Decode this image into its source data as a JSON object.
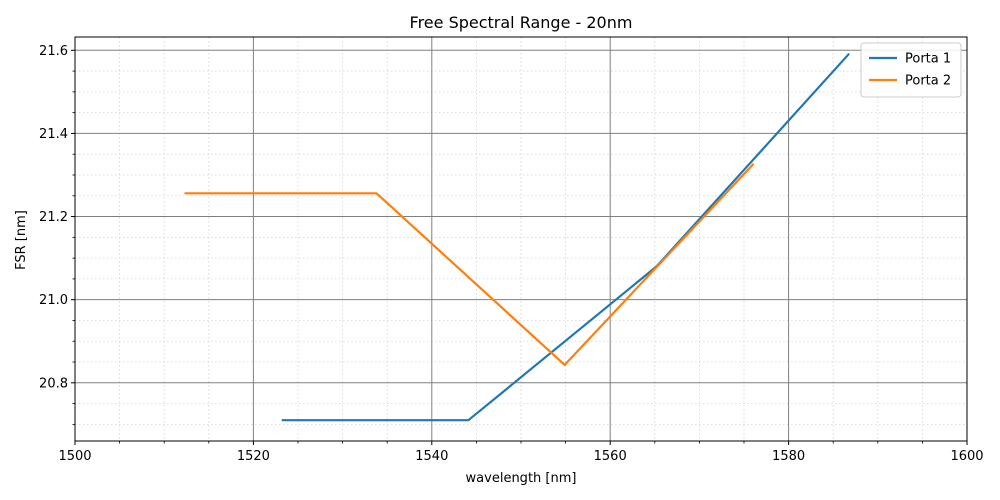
{
  "chart_data": {
    "type": "line",
    "title": "Free Spectral Range - 20nm",
    "xlabel": "wavelength [nm]",
    "ylabel": "FSR [nm]",
    "xlim": [
      1500,
      1600
    ],
    "ylim": [
      20.66,
      21.632
    ],
    "x_ticks": [
      1500,
      1520,
      1540,
      1560,
      1580,
      1600
    ],
    "x_tick_labels": [
      "1500",
      "1520",
      "1540",
      "1560",
      "1580",
      "1600"
    ],
    "x_minor_step": 5,
    "y_ticks": [
      20.8,
      21.0,
      21.2,
      21.4,
      21.6
    ],
    "y_tick_labels": [
      "20.8",
      "21.0",
      "21.2",
      "21.4",
      "21.6"
    ],
    "y_minor_step": 0.05,
    "grid": {
      "major": true,
      "minor": true
    },
    "legend_position": "top-right",
    "series": [
      {
        "name": "Porta 1",
        "color": "#1f77b4",
        "x": [
          1523.3,
          1544.1,
          1565.2,
          1586.7
        ],
        "y": [
          20.71,
          20.71,
          21.08,
          21.59
        ]
      },
      {
        "name": "Porta 2",
        "color": "#ff7f0e",
        "x": [
          1512.4,
          1533.8,
          1554.9,
          1576.0
        ],
        "y": [
          21.256,
          21.256,
          20.843,
          21.325
        ]
      }
    ]
  }
}
